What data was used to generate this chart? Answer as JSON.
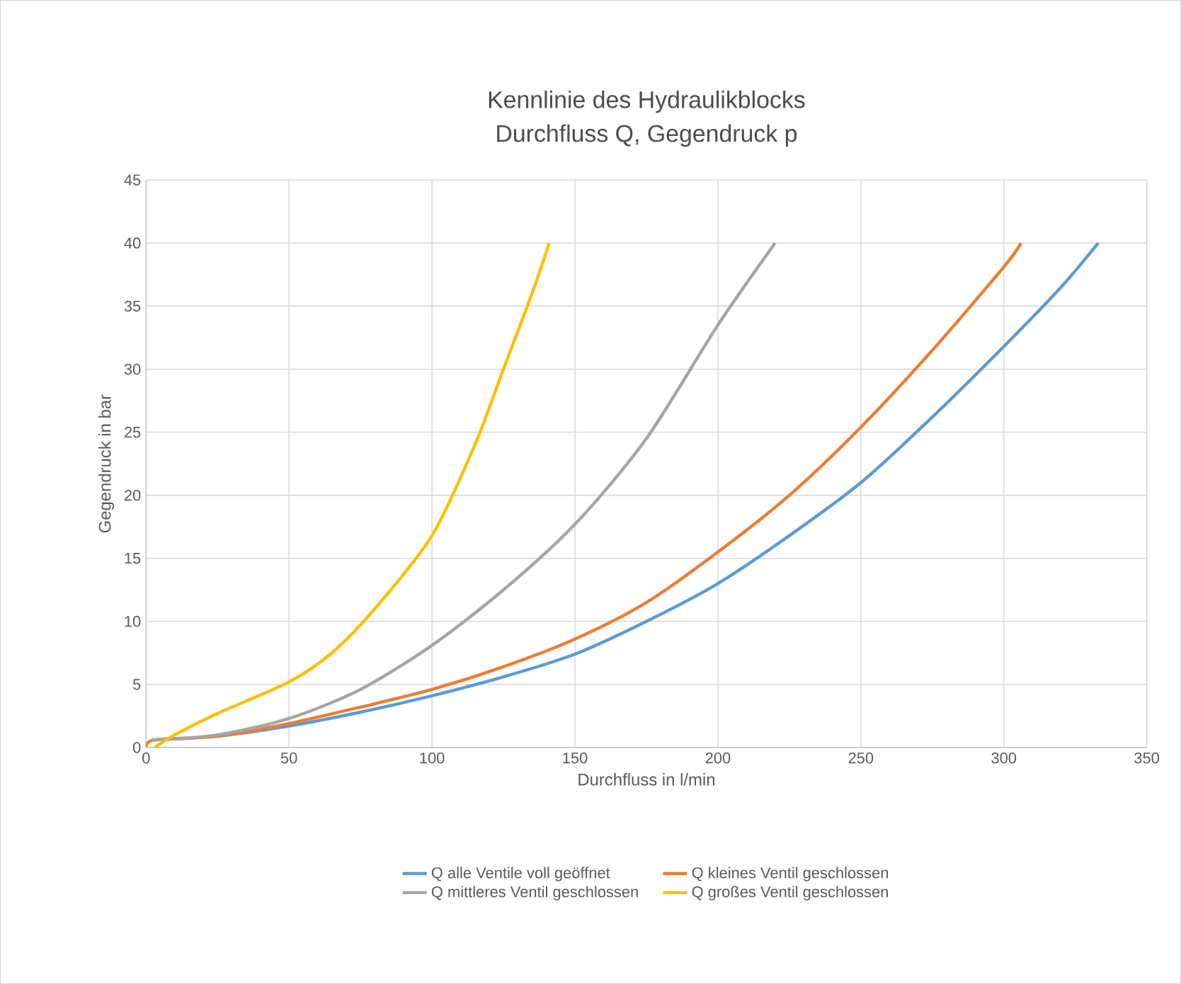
{
  "chart_data": {
    "type": "line",
    "title": "Kennlinie des Hydraulikblocks\nDurchfluss Q, Gegendruck p",
    "xlabel": "Durchfluss in l/min",
    "ylabel": "Gegendruck in bar",
    "xlim": [
      0,
      350
    ],
    "ylim": [
      0,
      45
    ],
    "xticks": [
      0,
      50,
      100,
      150,
      200,
      250,
      300,
      350
    ],
    "yticks": [
      0,
      5,
      10,
      15,
      20,
      25,
      30,
      35,
      40,
      45
    ],
    "grid": true,
    "legend": "bottom",
    "marker": "none",
    "series": [
      {
        "name": "Q alle Ventile voll geöffnet",
        "color": "#5b9bd5",
        "x": [
          2,
          25,
          50,
          75,
          100,
          125,
          150,
          175,
          200,
          225,
          250,
          275,
          300,
          320,
          333
        ],
        "values": [
          0.6,
          0.9,
          1.7,
          2.8,
          4.1,
          5.6,
          7.4,
          10,
          13,
          16.8,
          21,
          26.2,
          31.8,
          36.5,
          40
        ]
      },
      {
        "name": "Q kleines Ventil geschlossen",
        "color": "#ed7d31",
        "x": [
          0,
          3,
          25,
          50,
          75,
          100,
          125,
          150,
          175,
          200,
          225,
          250,
          275,
          300,
          306
        ],
        "values": [
          0,
          0.6,
          0.9,
          1.9,
          3.2,
          4.6,
          6.4,
          8.6,
          11.5,
          15.5,
          20,
          25.4,
          31.5,
          38.1,
          40
        ]
      },
      {
        "name": "Q mittleres Ventil geschlossen",
        "color": "#a5a5a5",
        "x": [
          2,
          25,
          50,
          75,
          100,
          125,
          150,
          175,
          200,
          220
        ],
        "values": [
          0.6,
          1,
          2.3,
          4.6,
          8.1,
          12.5,
          17.7,
          24.5,
          33.5,
          40
        ]
      },
      {
        "name": "Q großes Ventil geschlossen",
        "color": "#ffc000",
        "x": [
          3,
          10,
          25,
          50,
          65,
          80,
          100,
          115,
          125,
          135,
          141
        ],
        "values": [
          0,
          1,
          2.7,
          5.2,
          7.5,
          11,
          16.8,
          24,
          30,
          36,
          40
        ]
      }
    ]
  }
}
